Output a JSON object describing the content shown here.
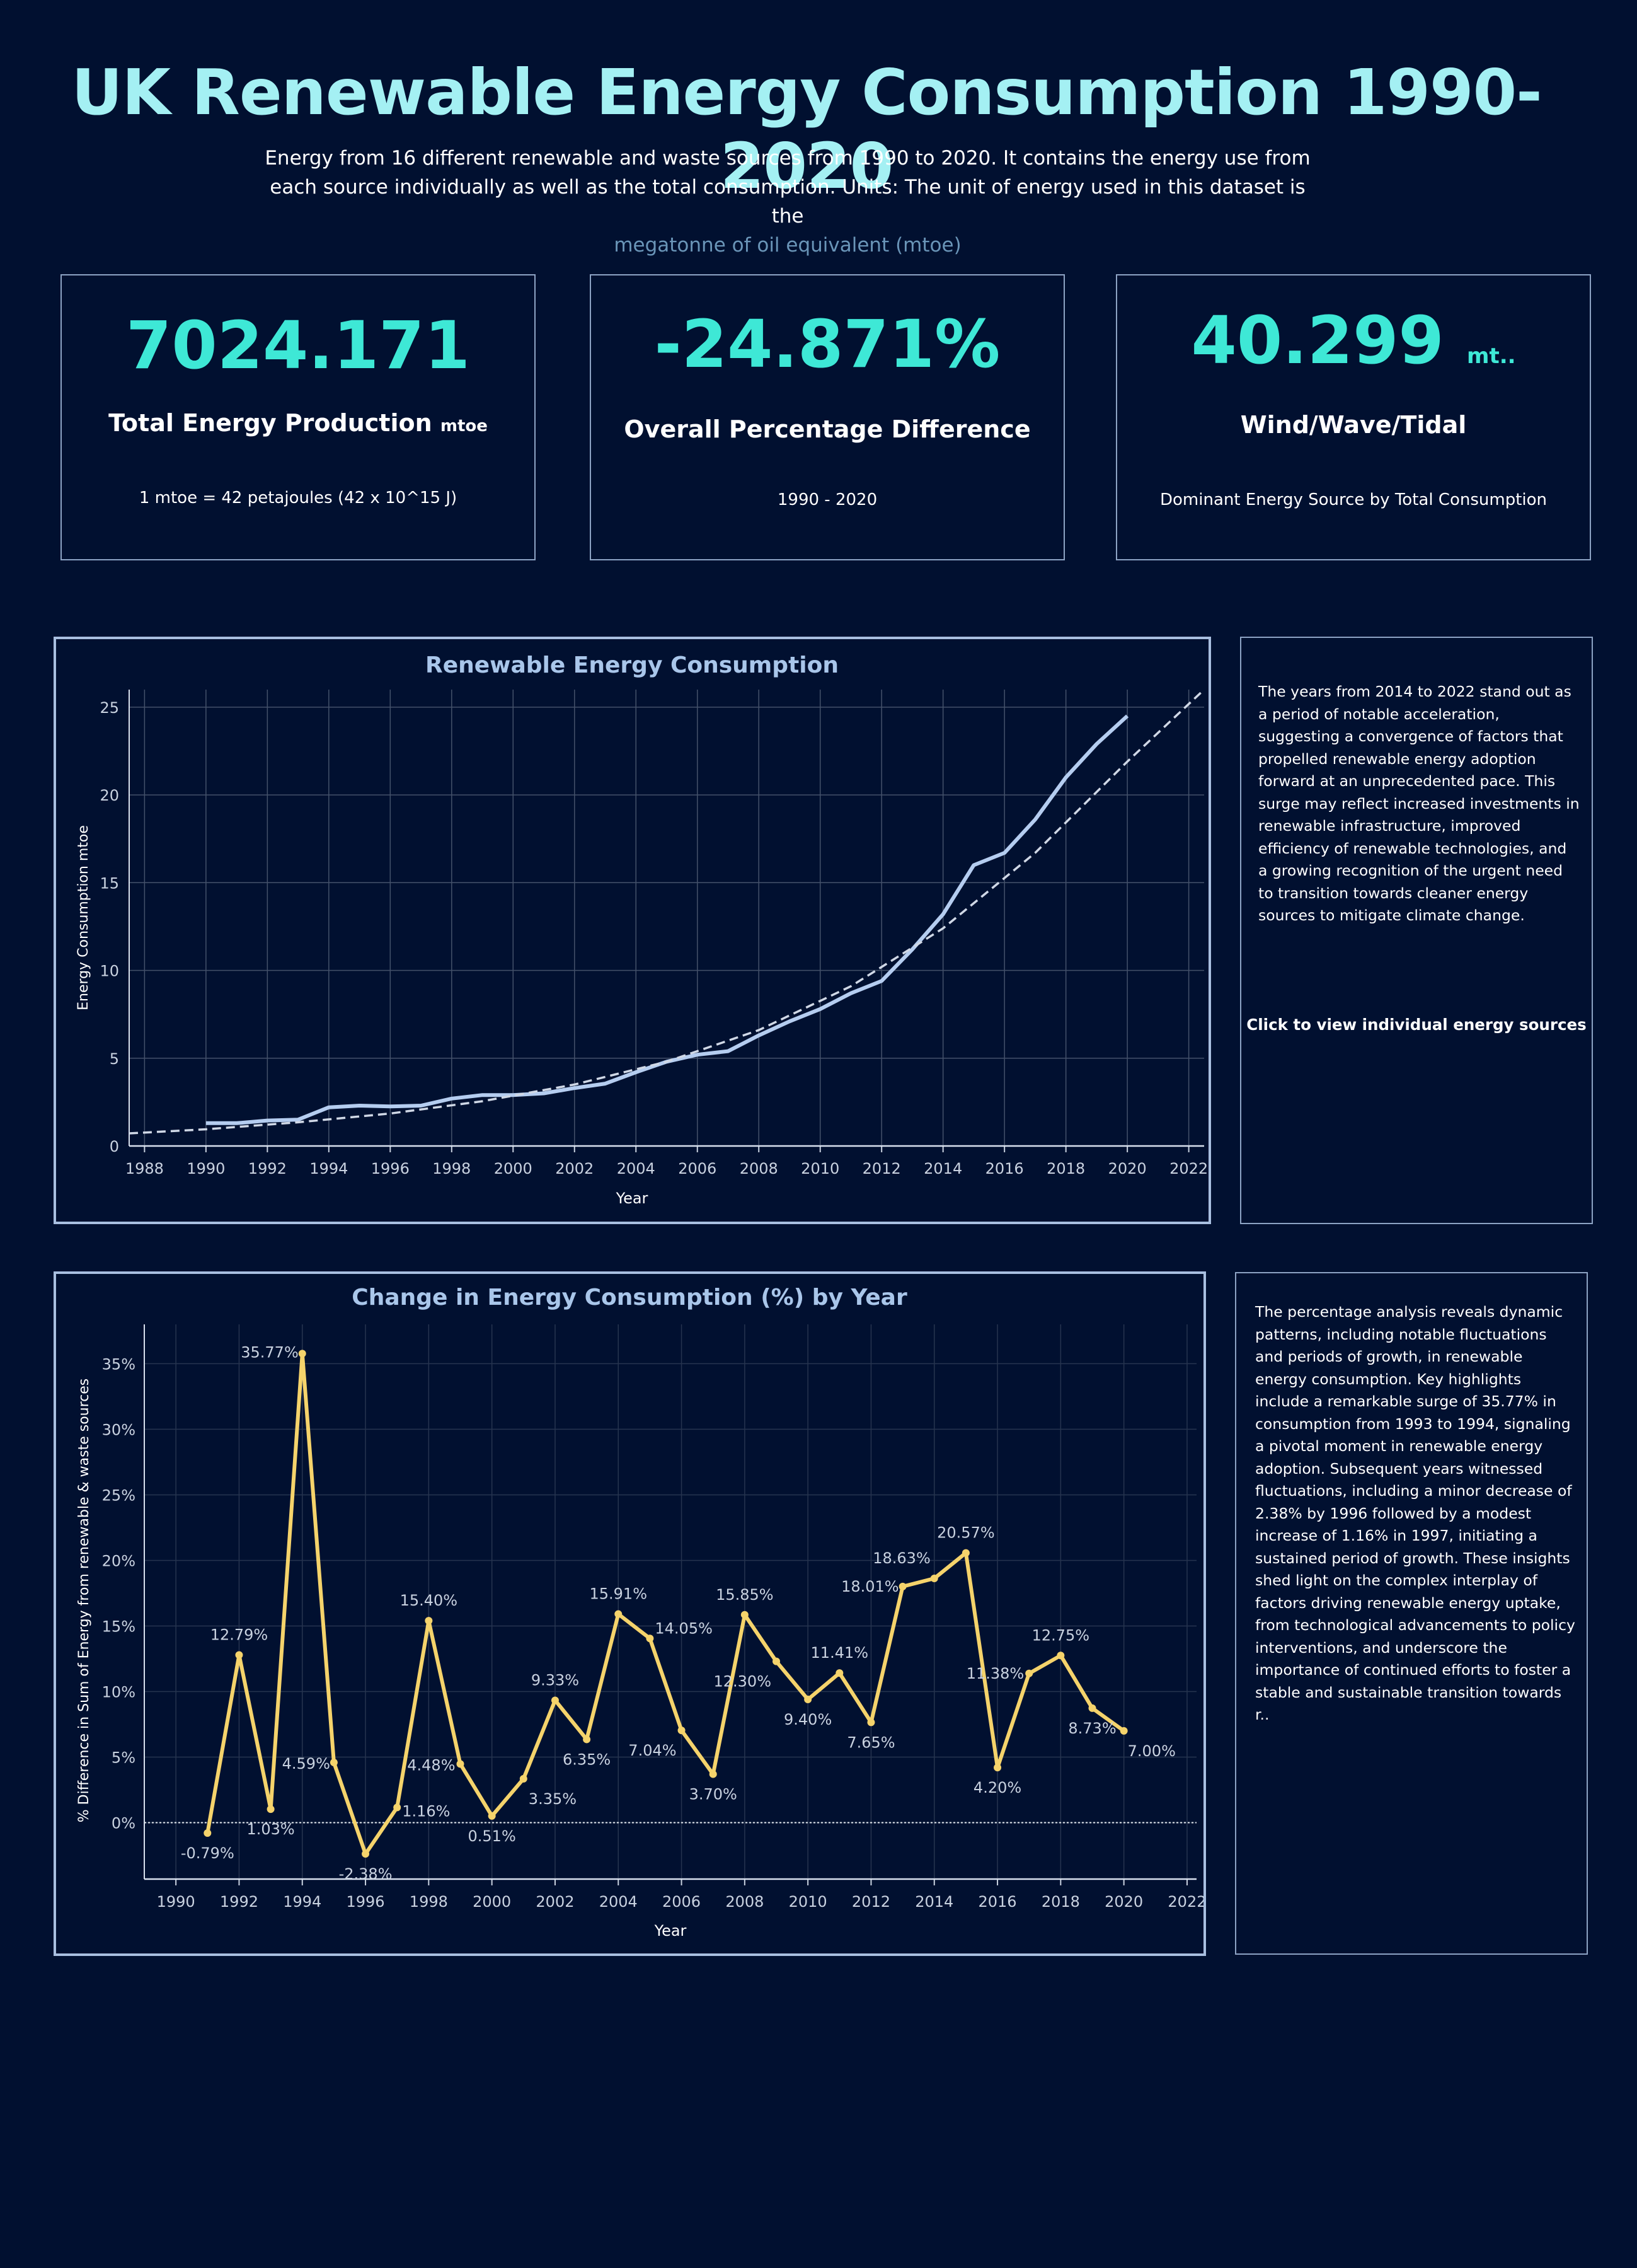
{
  "header": {
    "title": "UK Renewable Energy Consumption 1990-2020",
    "subtitle": "Energy from 16 different renewable and waste sources from 1990 to 2020. It contains the energy use from each source individually as well as the total consumption.  Units: The unit of energy used in this dataset is the",
    "subtitle_highlight": "megatonne of oil equivalent (mtoe)"
  },
  "kpis": {
    "total": {
      "value": "7024.171",
      "label": "Total Energy Production",
      "unit": "mtoe",
      "note": "1 mtoe = 42 petajoules (42 x 10^15 J)"
    },
    "pct": {
      "value": "-24.871%",
      "label": "Overall Percentage Difference",
      "note": "1990 - 2020"
    },
    "dominant": {
      "value": "40.299",
      "unit": "mt..",
      "label": "Wind/Wave/Tidal",
      "note": "Dominant  Energy Source by Total Consumption"
    }
  },
  "side": {
    "text1": "The years from 2014 to 2022 stand out as a period of notable acceleration, suggesting a convergence of factors that propelled renewable energy adoption forward at an unprecedented pace. This surge may reflect increased investments in renewable infrastructure, improved efficiency of renewable technologies, and a growing recognition of the urgent need to transition towards cleaner energy sources to mitigate climate change.",
    "cta": "Click to view individual energy sources",
    "text2": "The percentage analysis reveals dynamic patterns, including notable fluctuations and periods of growth, in renewable energy consumption. Key highlights include a remarkable surge of 35.77% in consumption from 1993 to 1994, signaling a pivotal moment in renewable energy adoption. Subsequent years witnessed fluctuations, including a minor decrease of 2.38% by 1996 followed by a modest increase of 1.16% in 1997, initiating a sustained period of growth. These insights shed light on the complex interplay of factors driving renewable energy uptake, from technological advancements to policy interventions, and underscore the importance of continued efforts to foster a stable and sustainable transition towards r.."
  },
  "colors": {
    "background": "#011030",
    "title": "#a4f0f3",
    "kpi_value": "#3ee8d6",
    "line": "#b5cdf0",
    "trend": "#d0d8e6",
    "pct_line": "#f5d36b",
    "panel_border": "#a9bfe0",
    "chart_title": "#a9c6ea"
  },
  "chart_data": [
    {
      "type": "line",
      "title": "Renewable Energy Consumption",
      "xlabel": "Year",
      "ylabel": "Energy Consumption mtoe",
      "xlim": [
        1987.5,
        2022.5
      ],
      "ylim": [
        0,
        26
      ],
      "xticks": [
        1988,
        1990,
        1992,
        1994,
        1996,
        1998,
        2000,
        2002,
        2004,
        2006,
        2008,
        2010,
        2012,
        2014,
        2016,
        2018,
        2020,
        2022
      ],
      "yticks": [
        0,
        5,
        10,
        15,
        20,
        25
      ],
      "grid": true,
      "series": [
        {
          "values_x": [
            1990,
            1991,
            1992,
            1993,
            1994,
            1995,
            1996,
            1997,
            1998,
            1999,
            2000,
            2001,
            2002,
            2003,
            2004,
            2005,
            2006,
            2007,
            2008,
            2009,
            2010,
            2011,
            2012,
            2013,
            2014,
            2015,
            2016,
            2017,
            2018,
            2019,
            2020
          ],
          "values": [
            1.3,
            1.3,
            1.45,
            1.5,
            2.2,
            2.3,
            2.25,
            2.3,
            2.7,
            2.9,
            2.9,
            3.0,
            3.3,
            3.55,
            4.2,
            4.8,
            5.2,
            5.4,
            6.3,
            7.1,
            7.8,
            8.7,
            9.4,
            11.2,
            13.2,
            16.0,
            16.7,
            18.6,
            21.0,
            22.9,
            24.5
          ]
        },
        {
          "trend": true,
          "values_x": [
            1987.5,
            1990,
            1993,
            1996,
            1999,
            2002,
            2005,
            2008,
            2011,
            2014,
            2017,
            2020,
            2022.5
          ],
          "values": [
            0.72,
            0.95,
            1.35,
            1.85,
            2.55,
            3.5,
            4.8,
            6.6,
            9.1,
            12.4,
            16.7,
            21.9,
            26.0
          ]
        }
      ]
    },
    {
      "type": "line",
      "title": "Change in Energy Consumption (%) by Year",
      "xlabel": "Year",
      "ylabel": "% Difference in Sum of Energy from renewable & waste sources",
      "xlim": [
        1989,
        2022.3
      ],
      "ylim": [
        -4.3,
        38
      ],
      "xticks": [
        1990,
        1992,
        1994,
        1996,
        1998,
        2000,
        2002,
        2004,
        2006,
        2008,
        2010,
        2012,
        2014,
        2016,
        2018,
        2020,
        2022
      ],
      "yticks": [
        "0%",
        "5%",
        "10%",
        "15%",
        "20%",
        "25%",
        "30%",
        "35%"
      ],
      "grid": true,
      "x": [
        1991,
        1992,
        1993,
        1994,
        1995,
        1996,
        1997,
        1998,
        1999,
        2000,
        2001,
        2002,
        2003,
        2004,
        2005,
        2006,
        2007,
        2008,
        2009,
        2010,
        2011,
        2012,
        2013,
        2014,
        2015,
        2016,
        2017,
        2018,
        2019,
        2020
      ],
      "values": [
        -0.79,
        12.79,
        1.03,
        35.77,
        4.59,
        -2.38,
        1.16,
        15.4,
        4.48,
        0.51,
        3.35,
        9.33,
        6.35,
        15.91,
        14.05,
        7.04,
        3.7,
        15.85,
        12.3,
        9.4,
        11.41,
        7.65,
        18.01,
        18.63,
        20.57,
        4.2,
        11.38,
        12.75,
        8.73,
        7.0
      ],
      "labels": [
        "-0.79%",
        "12.79%",
        "1.03%",
        "35.77%",
        "4.59%",
        "-2.38%",
        "1.16%",
        "15.40%",
        "4.48%",
        "0.51%",
        "3.35%",
        "9.33%",
        "6.35%",
        "15.91%",
        "14.05%",
        "7.04%",
        "3.70%",
        "15.85%",
        "12.30%",
        "9.40%",
        "11.41%",
        "7.65%",
        "18.01%",
        "18.63%",
        "20.57%",
        "4.20%",
        "11.38%",
        "12.75%",
        "8.73%",
        "7.00%"
      ]
    }
  ]
}
